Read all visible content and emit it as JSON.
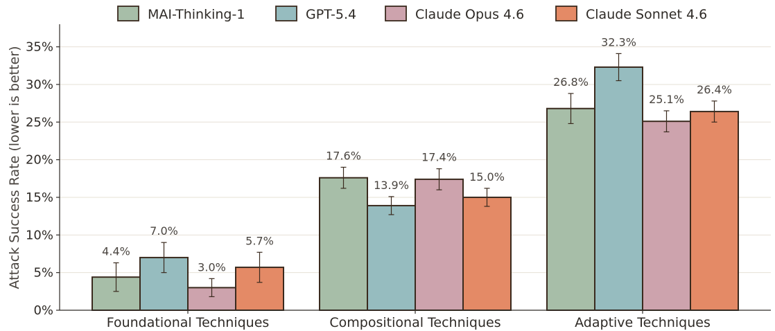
{
  "chart_data": {
    "type": "bar",
    "categories": [
      "Foundational Techniques",
      "Compositional Techniques",
      "Adaptive Techniques"
    ],
    "series": [
      {
        "name": "MAI-Thinking-1",
        "color": "#a7bea8",
        "values": [
          4.4,
          17.6,
          26.8
        ],
        "labels": [
          "4.4%",
          "17.6%",
          "26.8%"
        ],
        "err_low": [
          2.5,
          16.2,
          24.8
        ],
        "err_high": [
          6.3,
          19.0,
          28.8
        ]
      },
      {
        "name": "GPT-5.4",
        "color": "#96bcbf",
        "values": [
          7.0,
          13.9,
          32.3
        ],
        "labels": [
          "7.0%",
          "13.9%",
          "32.3%"
        ],
        "err_low": [
          5.0,
          12.7,
          30.5
        ],
        "err_high": [
          9.0,
          15.1,
          34.1
        ]
      },
      {
        "name": "Claude Opus 4.6",
        "color": "#cda3ad",
        "values": [
          3.0,
          17.4,
          25.1
        ],
        "labels": [
          "3.0%",
          "17.4%",
          "25.1%"
        ],
        "err_low": [
          1.8,
          16.0,
          23.7
        ],
        "err_high": [
          4.2,
          18.8,
          26.5
        ]
      },
      {
        "name": "Claude Sonnet 4.6",
        "color": "#e48a66",
        "values": [
          5.7,
          15.0,
          26.4
        ],
        "labels": [
          "5.7%",
          "15.0%",
          "26.4%"
        ],
        "err_low": [
          3.7,
          13.8,
          25.0
        ],
        "err_high": [
          7.7,
          16.2,
          27.8
        ]
      }
    ],
    "ylabel": "Attack Success Rate (lower is better)",
    "ylim": [
      0,
      38
    ],
    "yticks": [
      0,
      5,
      10,
      15,
      20,
      25,
      30,
      35
    ],
    "ytick_labels": [
      "0%",
      "5%",
      "10%",
      "15%",
      "20%",
      "25%",
      "30%",
      "35%"
    ],
    "grid": true,
    "legend_position": "top"
  }
}
